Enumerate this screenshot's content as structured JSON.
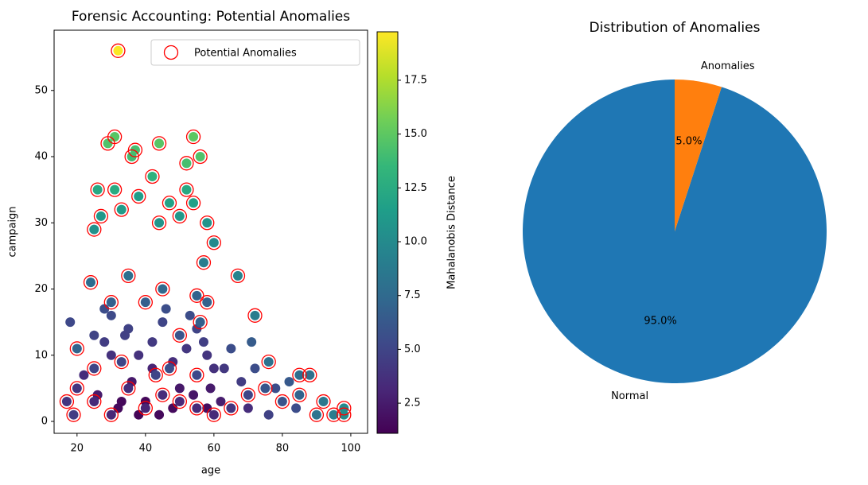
{
  "chart_data": [
    {
      "type": "scatter",
      "title": "Forensic Accounting: Potential Anomalies",
      "x_label": "age",
      "y_label": "campaign",
      "xlim": [
        13.3,
        104.9
      ],
      "xticks": [
        20,
        40,
        60,
        80,
        100
      ],
      "ylim": [
        -1.8,
        59.1
      ],
      "yticks": [
        0,
        10,
        20,
        30,
        40,
        50
      ],
      "colormap": "viridis",
      "colorbar_label": "Mahalanobis Distance",
      "clim": [
        1.1,
        19.75
      ],
      "cticks": [
        2.5,
        {
          "value": 5,
          "label": "5.0"
        },
        7.5,
        {
          "value": 10,
          "label": "10.0"
        },
        12.5,
        {
          "value": 15,
          "label": "15.0"
        },
        17.5
      ],
      "legend": "upper right",
      "series": [
        {
          "x": [
            18,
            22,
            28,
            30,
            35,
            38,
            42,
            45,
            48,
            52,
            55,
            58,
            60,
            63,
            65,
            71,
            68,
            72,
            78,
            82,
            26,
            32,
            36,
            40,
            44,
            50,
            54,
            58,
            62,
            70,
            28,
            34,
            46,
            53,
            38,
            33,
            48,
            59,
            42,
            30,
            25,
            57,
            84,
            76
          ],
          "y": [
            15,
            7,
            12,
            16,
            14,
            10,
            12,
            15,
            9,
            11,
            14,
            10,
            8,
            8,
            11,
            12,
            6,
            8,
            5,
            6,
            4,
            2,
            6,
            3,
            1,
            5,
            4,
            2,
            3,
            2,
            17,
            13,
            17,
            16,
            1,
            3,
            2,
            5,
            8,
            10,
            13,
            12,
            2,
            1
          ],
          "color_values": [
            5.2,
            3.5,
            4.5,
            5.3,
            4.8,
            3.8,
            4.3,
            5,
            3.6,
            4.1,
            4.9,
            4,
            3.8,
            4.2,
            5.5,
            6.5,
            4.5,
            5.5,
            5.5,
            6.3,
            2.5,
            1.6,
            2.4,
            1.4,
            1.5,
            2.3,
            2.2,
            1.8,
            2.6,
            3.5,
            5.5,
            4.7,
            5.6,
            5.5,
            1.3,
            1.5,
            1.6,
            2.5,
            3,
            3.8,
            4.9,
            4.6,
            5.5,
            4.8
          ]
        },
        {
          "name": "Potential Anomalies",
          "color": "#ff0000",
          "x": [
            32,
            29,
            31,
            36,
            37,
            44,
            54,
            52,
            56,
            26,
            31,
            42,
            52,
            47,
            54,
            33,
            38,
            27,
            50,
            58,
            25,
            44,
            60,
            67,
            72,
            24,
            35,
            45,
            55,
            30,
            40,
            58,
            20,
            25,
            33,
            43,
            47,
            55,
            76,
            85,
            88,
            92,
            98,
            98,
            17,
            20,
            70,
            80,
            95,
            60,
            40,
            30,
            50,
            35,
            65,
            75,
            85,
            90,
            19,
            25,
            45,
            55,
            50,
            56,
            57
          ],
          "y": [
            56,
            42,
            43,
            40,
            41,
            42,
            43,
            39,
            40,
            35,
            35,
            37,
            35,
            33,
            33,
            32,
            34,
            31,
            31,
            30,
            29,
            30,
            27,
            22,
            16,
            21,
            22,
            20,
            19,
            18,
            18,
            18,
            11,
            8,
            9,
            7,
            8,
            7,
            9,
            7,
            7,
            3,
            2,
            1,
            3,
            5,
            4,
            3,
            1,
            1,
            2,
            1,
            3,
            5,
            2,
            5,
            4,
            1,
            1,
            3,
            4,
            2,
            13,
            15,
            24
          ],
          "color_values": [
            19.7,
            14.5,
            14.8,
            14,
            14.2,
            14.8,
            15,
            14.2,
            14.5,
            12.3,
            12.5,
            13,
            12.4,
            11.8,
            11.6,
            11.3,
            11.5,
            11,
            11,
            10.7,
            10.5,
            10.8,
            9.9,
            9.5,
            9,
            7.6,
            7.9,
            7.4,
            7,
            6.8,
            6.7,
            6.9,
            7,
            5,
            5,
            5,
            5.5,
            5.2,
            8,
            7.8,
            8,
            8.5,
            10,
            10.3,
            4,
            4,
            5,
            6,
            9,
            3.3,
            3,
            3.1,
            3.2,
            3.5,
            4,
            6,
            7,
            8.3,
            4.5,
            3.3,
            3.4,
            3.3,
            6,
            6.8,
            9
          ]
        }
      ]
    },
    {
      "type": "pie",
      "title": "Distribution of Anomalies",
      "startangle": 90,
      "categories": [
        "Normal",
        "Anomalies"
      ],
      "values": [
        95,
        5
      ],
      "value_labels": [
        "95.0%",
        "5.0%"
      ],
      "colors": [
        "#1f77b4",
        "#ff7f0e"
      ]
    }
  ]
}
